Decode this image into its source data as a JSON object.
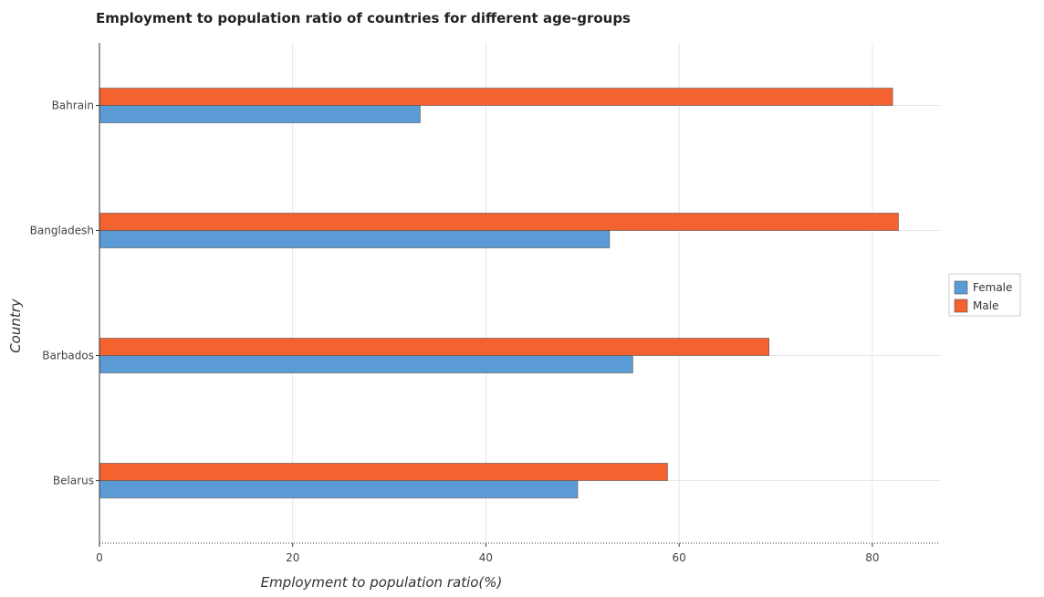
{
  "chart_data": {
    "type": "bar",
    "orientation": "horizontal",
    "title": "Employment to population ratio of countries for different age-groups",
    "xlabel": "Employment to population ratio(%)",
    "ylabel": "Country",
    "categories": [
      "Bahrain",
      "Bangladesh",
      "Barbados",
      "Belarus"
    ],
    "series": [
      {
        "name": "Female",
        "values": [
          33.2,
          52.8,
          55.2,
          49.5
        ],
        "color": "#5b9bd5"
      },
      {
        "name": "Male",
        "values": [
          82.1,
          82.7,
          69.3,
          58.8
        ],
        "color": "#f4622f"
      }
    ],
    "xlim": [
      0,
      87
    ],
    "xticks": [
      0,
      20,
      40,
      60,
      80
    ],
    "xtick_labels": [
      "0",
      "20",
      "40",
      "60",
      "80"
    ],
    "grid": true,
    "legend_position": "right"
  }
}
